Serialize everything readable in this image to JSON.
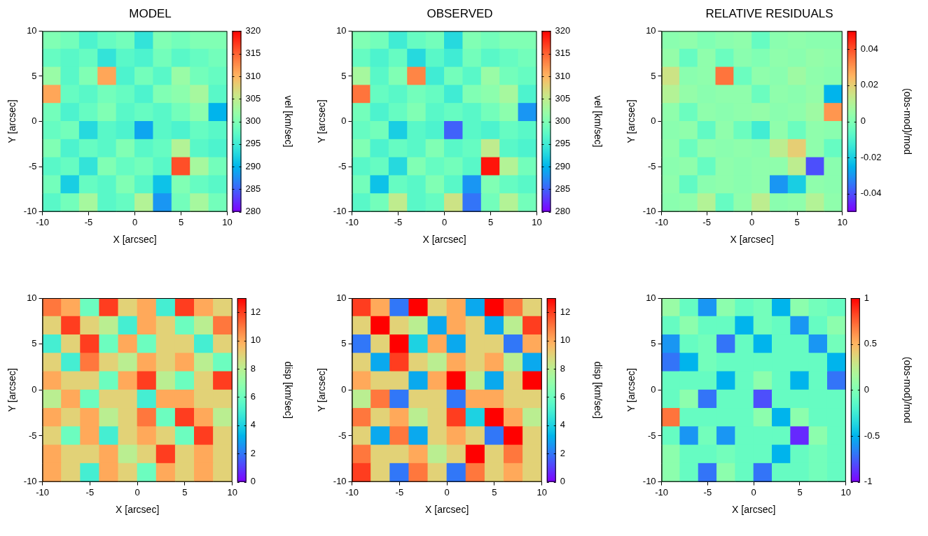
{
  "chart_data": [
    {
      "type": "heatmap",
      "title": "MODEL",
      "x_label": "X [arcsec]",
      "y_label": "Y [arcsec]",
      "xlim": [
        -10,
        10
      ],
      "ylim": [
        -10,
        10
      ],
      "xticks": [
        -10,
        -5,
        0,
        5,
        10
      ],
      "yticks": [
        -10,
        -5,
        0,
        5,
        10
      ],
      "x": [
        -9,
        -7,
        -5,
        -3,
        -1,
        1,
        3,
        5,
        7,
        9
      ],
      "y": [
        9,
        7,
        5,
        3,
        1,
        -1,
        -3,
        -5,
        -7,
        -9
      ],
      "values": [
        [
          300,
          299,
          296,
          298,
          299,
          294,
          300,
          299,
          300,
          300
        ],
        [
          298,
          297,
          298,
          294,
          297,
          296,
          299,
          297,
          298,
          299
        ],
        [
          302,
          297,
          300,
          311,
          296,
          299,
          297,
          302,
          299,
          298
        ],
        [
          311,
          298,
          297,
          299,
          298,
          296,
          300,
          301,
          303,
          297
        ],
        [
          299,
          296,
          298,
          300,
          297,
          298,
          297,
          299,
          301,
          290
        ],
        [
          298,
          299,
          293,
          297,
          296,
          289,
          297,
          296,
          298,
          297
        ],
        [
          300,
          296,
          298,
          297,
          300,
          297,
          298,
          304,
          297,
          296
        ],
        [
          297,
          298,
          294,
          300,
          298,
          299,
          297,
          316,
          303,
          299
        ],
        [
          299,
          292,
          298,
          297,
          300,
          297,
          291,
          300,
          298,
          297
        ],
        [
          297,
          299,
          303,
          297,
          298,
          304,
          288,
          299,
          303,
          299
        ]
      ],
      "colorbar": {
        "label": "vel [km/sec]",
        "range": [
          280,
          320
        ],
        "ticks": [
          280,
          285,
          290,
          295,
          300,
          305,
          310,
          315,
          320
        ]
      }
    },
    {
      "type": "heatmap",
      "title": "OBSERVED",
      "x_label": "X [arcsec]",
      "y_label": "Y [arcsec]",
      "xlim": [
        -10,
        10
      ],
      "ylim": [
        -10,
        10
      ],
      "xticks": [
        -10,
        -5,
        0,
        5,
        10
      ],
      "yticks": [
        -10,
        -5,
        0,
        5,
        10
      ],
      "x": [
        -9,
        -7,
        -5,
        -3,
        -1,
        1,
        3,
        5,
        7,
        9
      ],
      "y": [
        9,
        7,
        5,
        3,
        1,
        -1,
        -3,
        -5,
        -7,
        -9
      ],
      "values": [
        [
          300,
          299,
          295,
          298,
          299,
          293,
          300,
          299,
          300,
          300
        ],
        [
          298,
          296,
          298,
          293,
          297,
          295,
          299,
          297,
          298,
          299
        ],
        [
          303,
          297,
          300,
          313,
          295,
          299,
          297,
          302,
          299,
          298
        ],
        [
          314,
          298,
          297,
          299,
          298,
          295,
          300,
          301,
          303,
          296
        ],
        [
          299,
          296,
          298,
          300,
          297,
          298,
          297,
          299,
          301,
          288
        ],
        [
          298,
          299,
          292,
          297,
          296,
          285,
          297,
          296,
          298,
          297
        ],
        [
          300,
          296,
          298,
          297,
          300,
          297,
          298,
          305,
          297,
          296
        ],
        [
          297,
          298,
          293,
          300,
          298,
          299,
          297,
          319,
          304,
          299
        ],
        [
          299,
          291,
          298,
          297,
          300,
          297,
          288,
          300,
          298,
          297
        ],
        [
          297,
          299,
          305,
          297,
          298,
          306,
          286,
          299,
          304,
          299
        ]
      ],
      "colorbar": {
        "label": "vel [km/sec]",
        "range": [
          280,
          320
        ],
        "ticks": [
          280,
          285,
          290,
          295,
          300,
          305,
          310,
          315,
          320
        ]
      }
    },
    {
      "type": "heatmap",
      "title": "RELATIVE RESIDUALS",
      "x_label": "X [arcsec]",
      "y_label": "Y [arcsec]",
      "xlim": [
        -10,
        10
      ],
      "ylim": [
        -10,
        10
      ],
      "xticks": [
        -10,
        -5,
        0,
        5,
        10
      ],
      "yticks": [
        -10,
        -5,
        0,
        5,
        10
      ],
      "x": [
        -9,
        -7,
        -5,
        -3,
        -1,
        1,
        3,
        5,
        7,
        9
      ],
      "y": [
        9,
        7,
        5,
        3,
        1,
        -1,
        -3,
        -5,
        -7,
        -9
      ],
      "values": [
        [
          0.002,
          0.003,
          0.0,
          0.002,
          0.003,
          -0.005,
          0.002,
          0.003,
          0.002,
          0.002
        ],
        [
          0.004,
          -0.005,
          0.003,
          -0.004,
          0.002,
          0.0,
          0.003,
          0.002,
          0.004,
          0.003
        ],
        [
          0.015,
          0.002,
          0.003,
          0.035,
          -0.004,
          0.003,
          0.002,
          0.006,
          0.003,
          0.002
        ],
        [
          0.01,
          0.004,
          0.002,
          0.003,
          0.003,
          -0.004,
          0.003,
          0.002,
          0.004,
          -0.025
        ],
        [
          0.003,
          -0.004,
          0.003,
          0.002,
          0.003,
          0.004,
          0.002,
          0.003,
          0.006,
          0.03
        ],
        [
          0.002,
          0.003,
          -0.006,
          0.003,
          -0.004,
          -0.012,
          0.003,
          -0.004,
          0.003,
          0.002
        ],
        [
          0.003,
          -0.004,
          0.003,
          0.002,
          0.003,
          0.002,
          0.012,
          0.02,
          0.003,
          -0.005
        ],
        [
          0.002,
          0.003,
          -0.005,
          0.003,
          0.002,
          0.003,
          0.003,
          0.012,
          -0.04,
          0.002
        ],
        [
          0.003,
          -0.006,
          0.002,
          0.003,
          0.002,
          0.003,
          -0.03,
          -0.02,
          0.003,
          0.002
        ],
        [
          0.002,
          0.003,
          0.01,
          -0.005,
          0.003,
          0.012,
          0.002,
          0.003,
          0.01,
          0.003
        ]
      ],
      "colorbar": {
        "label": "(obs-mod)/mod",
        "range": [
          -0.05,
          0.05
        ],
        "ticks": [
          -0.04,
          -0.02,
          0,
          0.02,
          0.04
        ]
      }
    },
    {
      "type": "heatmap",
      "x_label": "X [arcsec]",
      "y_label": "Y [arcsec]",
      "xlim": [
        -10,
        10
      ],
      "ylim": [
        -10,
        10
      ],
      "xticks": [
        -10,
        -5,
        0,
        5,
        10
      ],
      "yticks": [
        -10,
        -5,
        0,
        5,
        10
      ],
      "x": [
        -9,
        -7,
        -5,
        -3,
        -1,
        1,
        3,
        5,
        7,
        9
      ],
      "y": [
        9,
        7,
        5,
        3,
        1,
        -1,
        -3,
        -5,
        -7,
        -9
      ],
      "values": [
        [
          11,
          10,
          6,
          12,
          9,
          10,
          5,
          12,
          10,
          9
        ],
        [
          9,
          12,
          9,
          8,
          5,
          10,
          9,
          6,
          8,
          11
        ],
        [
          5,
          9,
          12,
          6,
          10,
          6,
          9,
          9,
          5,
          9
        ],
        [
          9,
          5,
          11,
          9,
          8,
          10,
          9,
          10,
          8,
          6
        ],
        [
          10,
          9,
          9,
          6,
          10,
          12,
          8,
          6,
          9,
          12
        ],
        [
          8,
          10,
          6,
          9,
          9,
          5,
          10,
          10,
          9,
          9
        ],
        [
          10,
          9,
          10,
          8,
          9,
          11,
          6,
          12,
          10,
          8
        ],
        [
          9,
          6,
          10,
          5,
          9,
          10,
          9,
          6,
          12,
          9
        ],
        [
          10,
          9,
          9,
          10,
          8,
          9,
          12,
          9,
          10,
          9
        ],
        [
          10,
          9,
          5,
          10,
          9,
          6,
          10,
          9,
          10,
          9
        ]
      ],
      "colorbar": {
        "label": "disp [km/sec]",
        "range": [
          0,
          13
        ],
        "ticks": [
          0,
          2,
          4,
          6,
          8,
          10,
          12
        ]
      }
    },
    {
      "type": "heatmap",
      "x_label": "X [arcsec]",
      "y_label": "Y [arcsec]",
      "xlim": [
        -10,
        10
      ],
      "ylim": [
        -10,
        10
      ],
      "xticks": [
        -10,
        -5,
        0,
        5,
        10
      ],
      "yticks": [
        -10,
        -5,
        0,
        5,
        10
      ],
      "x": [
        -9,
        -7,
        -5,
        -3,
        -1,
        1,
        3,
        5,
        7,
        9
      ],
      "y": [
        9,
        7,
        5,
        3,
        1,
        -1,
        -3,
        -5,
        -7,
        -9
      ],
      "values": [
        [
          12,
          10,
          2,
          13,
          9,
          10,
          3,
          13,
          11,
          9
        ],
        [
          9,
          13,
          9,
          8,
          3,
          10,
          9,
          3,
          8,
          12
        ],
        [
          2,
          9,
          13,
          4,
          10,
          3,
          9,
          9,
          2,
          10
        ],
        [
          9,
          3,
          12,
          9,
          8,
          10,
          9,
          10,
          8,
          3
        ],
        [
          10,
          9,
          9,
          3,
          10,
          13,
          8,
          3,
          9,
          13
        ],
        [
          8,
          11,
          2,
          9,
          9,
          2,
          10,
          10,
          9,
          9
        ],
        [
          11,
          9,
          10,
          8,
          9,
          12,
          4,
          13,
          10,
          8
        ],
        [
          9,
          3,
          11,
          3,
          9,
          10,
          9,
          2,
          13,
          9
        ],
        [
          11,
          9,
          9,
          10,
          8,
          9,
          13,
          9,
          11,
          9
        ],
        [
          12,
          9,
          2,
          11,
          9,
          2,
          11,
          9,
          10,
          9
        ]
      ],
      "colorbar": {
        "label": "disp [km/sec]",
        "range": [
          0,
          13
        ],
        "ticks": [
          0,
          2,
          4,
          6,
          8,
          10,
          12
        ]
      }
    },
    {
      "type": "heatmap",
      "x_label": "X [arcsec]",
      "y_label": "Y [arcsec]",
      "xlim": [
        -10,
        10
      ],
      "ylim": [
        -10,
        10
      ],
      "xticks": [
        -10,
        -5,
        0,
        5,
        10
      ],
      "yticks": [
        -10,
        -5,
        0,
        5,
        10
      ],
      "x": [
        -9,
        -7,
        -5,
        -3,
        -1,
        1,
        3,
        5,
        7,
        9
      ],
      "y": [
        9,
        7,
        5,
        3,
        1,
        -1,
        -3,
        -5,
        -7,
        -9
      ],
      "values": [
        [
          0.1,
          -0.1,
          -0.6,
          0.05,
          -0.1,
          -0.05,
          -0.5,
          0.05,
          -0.05,
          -0.1
        ],
        [
          -0.1,
          0.05,
          -0.1,
          -0.1,
          -0.5,
          -0.05,
          -0.1,
          -0.6,
          -0.1,
          0.05
        ],
        [
          -0.6,
          -0.1,
          -0.05,
          -0.7,
          -0.1,
          -0.5,
          -0.1,
          -0.1,
          -0.6,
          -0.05
        ],
        [
          -0.7,
          -0.5,
          -0.05,
          -0.1,
          -0.1,
          -0.1,
          -0.1,
          -0.1,
          -0.1,
          -0.5
        ],
        [
          -0.1,
          -0.1,
          -0.1,
          -0.5,
          -0.1,
          0.05,
          -0.1,
          -0.5,
          -0.1,
          -0.7
        ],
        [
          -0.1,
          0.05,
          -0.7,
          -0.1,
          -0.1,
          -0.8,
          -0.1,
          -0.1,
          -0.1,
          -0.1
        ],
        [
          0.7,
          -0.1,
          -0.1,
          -0.1,
          -0.1,
          0.05,
          -0.5,
          0.05,
          -0.1,
          -0.1
        ],
        [
          -0.1,
          -0.6,
          -0.05,
          -0.6,
          -0.1,
          -0.1,
          -0.1,
          -0.9,
          0.05,
          -0.1
        ],
        [
          0.05,
          -0.1,
          -0.1,
          -0.05,
          -0.1,
          -0.1,
          -0.5,
          -0.1,
          -0.05,
          -0.1
        ],
        [
          0.05,
          -0.1,
          -0.7,
          0.05,
          -0.1,
          -0.7,
          -0.1,
          -0.1,
          -0.05,
          -0.1
        ]
      ],
      "colorbar": {
        "label": "(obs-mod)/mod",
        "range": [
          -1,
          1
        ],
        "ticks": [
          -1,
          -0.5,
          0,
          0.5,
          1
        ]
      }
    }
  ]
}
